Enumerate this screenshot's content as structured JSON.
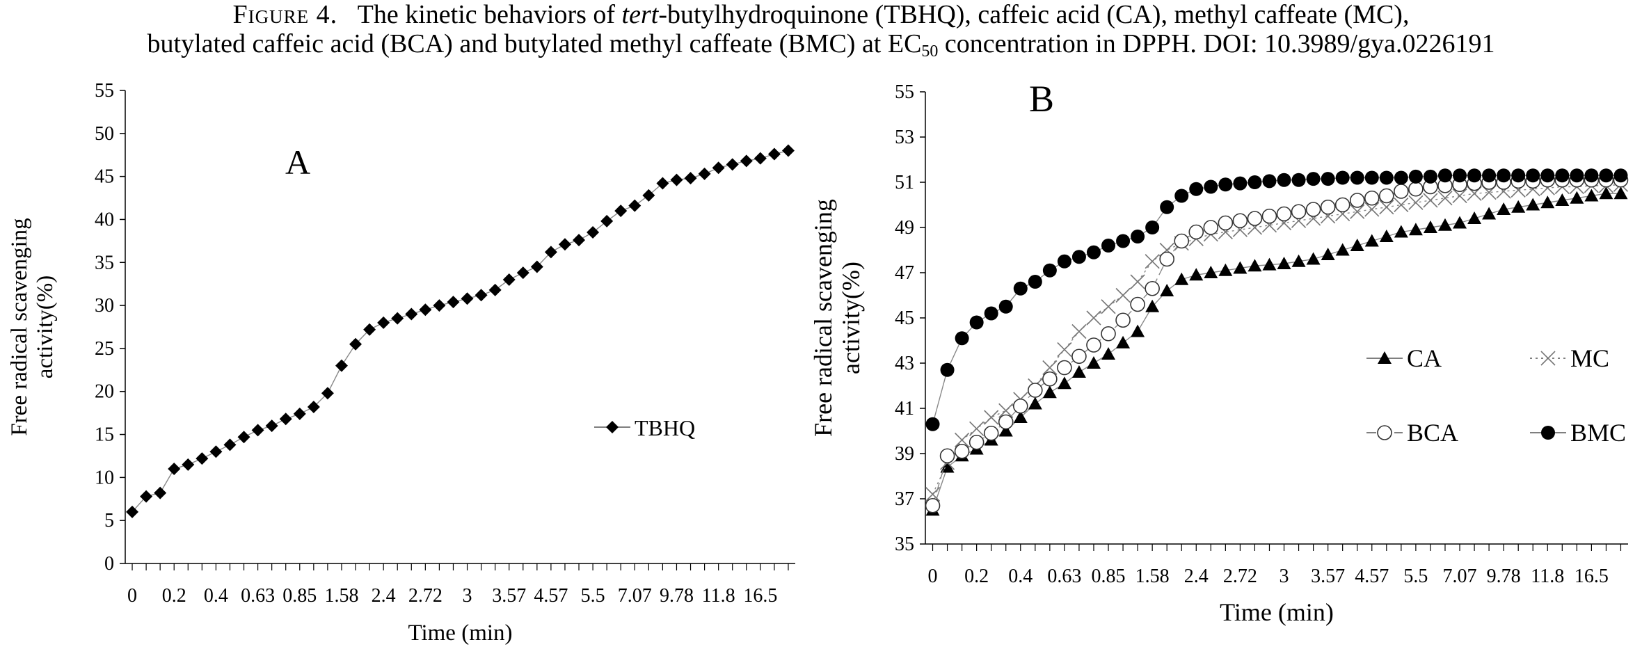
{
  "caption": {
    "fig_label": "Figure 4.",
    "line1_pre": "The kinetic behaviors of ",
    "line1_italic": "tert",
    "line1_post": "-butylhydroquinone (TBHQ), caffeic acid (CA), methyl caffeate (MC),",
    "line2_pre": "butylated caffeic acid (BCA) and butylated methyl caffeate (BMC) at EC",
    "line2_sub": "50",
    "line2_post": " concentration in DPPH. DOI: 10.3989/gya.0226191"
  },
  "chart_data": [
    {
      "type": "line",
      "panel_label": "A",
      "xlabel": "Time (min)",
      "ylabel": "Free radical scavenging activity(%)",
      "ylim": [
        0,
        55
      ],
      "yticks": [
        0,
        5,
        10,
        15,
        20,
        25,
        30,
        35,
        40,
        45,
        50,
        55
      ],
      "x_tick_labels": [
        "0",
        "0.2",
        "0.4",
        "0.63",
        "0.85",
        "1.58",
        "2.4",
        "2.72",
        "3",
        "3.57",
        "4.57",
        "5.5",
        "7.07",
        "9.78",
        "11.8",
        "16.5"
      ],
      "grid": false,
      "legend_position": "right-middle",
      "series": [
        {
          "name": "TBHQ",
          "marker": "diamond",
          "color": "#000000",
          "values": [
            6.0,
            7.8,
            8.2,
            11.0,
            11.5,
            12.2,
            13.0,
            13.8,
            14.7,
            15.5,
            16.0,
            16.8,
            17.4,
            18.2,
            19.8,
            23.0,
            25.5,
            27.2,
            28.0,
            28.5,
            29.0,
            29.5,
            30.0,
            30.4,
            30.8,
            31.2,
            31.8,
            33.0,
            33.8,
            34.5,
            36.2,
            37.1,
            37.6,
            38.5,
            39.8,
            41.0,
            41.6,
            42.8,
            44.2,
            44.6,
            44.8,
            45.3,
            46.0,
            46.4,
            46.8,
            47.1,
            47.6,
            48.0
          ]
        }
      ]
    },
    {
      "type": "line",
      "panel_label": "B",
      "xlabel": "Time (min)",
      "ylabel": "Free radical scavenging activity(%)",
      "ylim": [
        35,
        55
      ],
      "yticks": [
        35,
        37,
        39,
        41,
        43,
        45,
        47,
        49,
        51,
        53,
        55
      ],
      "x_tick_labels": [
        "0",
        "0.2",
        "0.4",
        "0.63",
        "0.85",
        "1.58",
        "2.4",
        "2.72",
        "3",
        "3.57",
        "4.57",
        "5.5",
        "7.07",
        "9.78",
        "11.8",
        "16.5"
      ],
      "grid": false,
      "legend_position": "right-middle",
      "series": [
        {
          "name": "CA",
          "marker": "triangle",
          "color": "#000000",
          "line_dash": "",
          "values": [
            36.5,
            38.4,
            38.9,
            39.2,
            39.6,
            40.0,
            40.6,
            41.2,
            41.7,
            42.1,
            42.6,
            43.0,
            43.4,
            43.9,
            44.4,
            45.5,
            46.2,
            46.7,
            46.9,
            47.0,
            47.1,
            47.2,
            47.3,
            47.35,
            47.4,
            47.5,
            47.6,
            47.8,
            48.0,
            48.2,
            48.4,
            48.6,
            48.8,
            48.9,
            49.0,
            49.1,
            49.2,
            49.4,
            49.6,
            49.8,
            49.9,
            50.0,
            50.1,
            50.2,
            50.3,
            50.4,
            50.5,
            50.5
          ]
        },
        {
          "name": "MC",
          "marker": "cross",
          "color": "#000000",
          "line_dash": "3 5",
          "values": [
            37.2,
            38.6,
            39.6,
            40.1,
            40.6,
            40.9,
            41.4,
            42.0,
            42.8,
            43.6,
            44.4,
            45.0,
            45.5,
            46.0,
            46.6,
            47.5,
            48.0,
            48.3,
            48.5,
            48.7,
            48.8,
            48.9,
            49.0,
            49.1,
            49.2,
            49.3,
            49.4,
            49.5,
            49.6,
            49.7,
            49.8,
            49.9,
            50.0,
            50.1,
            50.2,
            50.3,
            50.4,
            50.5,
            50.55,
            50.6,
            50.65,
            50.7,
            50.75,
            50.8,
            50.8,
            50.85,
            50.85,
            50.9
          ]
        },
        {
          "name": "BCA",
          "marker": "circle-open",
          "color": "#000000",
          "line_dash": "14 6",
          "values": [
            36.7,
            38.9,
            39.1,
            39.5,
            39.9,
            40.4,
            41.1,
            41.8,
            42.3,
            42.8,
            43.3,
            43.8,
            44.3,
            44.9,
            45.6,
            46.3,
            47.6,
            48.4,
            48.8,
            49.0,
            49.2,
            49.3,
            49.4,
            49.5,
            49.6,
            49.7,
            49.8,
            49.9,
            50.0,
            50.2,
            50.3,
            50.4,
            50.6,
            50.7,
            50.8,
            50.85,
            50.9,
            50.95,
            51.0,
            51.0,
            51.05,
            51.05,
            51.1,
            51.1,
            51.1,
            51.1,
            51.1,
            51.1
          ]
        },
        {
          "name": "BMC",
          "marker": "circle-filled",
          "color": "#000000",
          "line_dash": "",
          "values": [
            40.3,
            42.7,
            44.1,
            44.8,
            45.2,
            45.5,
            46.3,
            46.6,
            47.1,
            47.5,
            47.7,
            47.9,
            48.2,
            48.4,
            48.6,
            49.0,
            49.9,
            50.4,
            50.7,
            50.8,
            50.9,
            50.95,
            51.0,
            51.05,
            51.1,
            51.1,
            51.15,
            51.15,
            51.2,
            51.2,
            51.2,
            51.2,
            51.2,
            51.25,
            51.25,
            51.3,
            51.3,
            51.3,
            51.3,
            51.3,
            51.3,
            51.3,
            51.3,
            51.3,
            51.3,
            51.3,
            51.3,
            51.3
          ]
        }
      ]
    }
  ]
}
